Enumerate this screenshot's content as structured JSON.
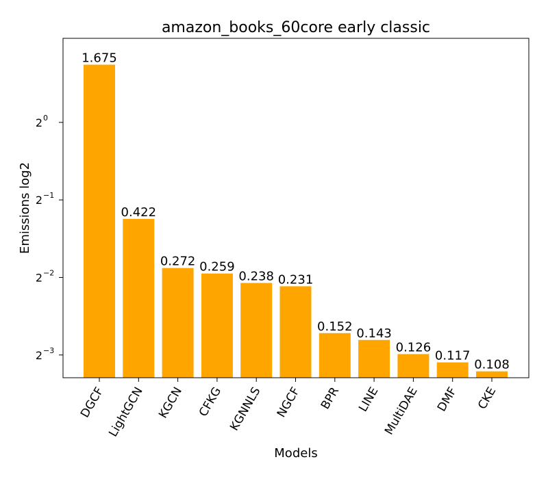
{
  "chart_data": {
    "type": "bar",
    "title": "amazon_books_60core early classic",
    "xlabel": "Models",
    "ylabel": "Emissions log2",
    "yscale": "log2",
    "ylim": [
      0.102,
      2.12
    ],
    "categories": [
      "DGCF",
      "LightGCN",
      "KGCN",
      "CFKG",
      "KGNNLS",
      "NGCF",
      "BPR",
      "LINE",
      "MultiDAE",
      "DMF",
      "CKE"
    ],
    "values": [
      1.675,
      0.422,
      0.272,
      0.259,
      0.238,
      0.231,
      0.152,
      0.143,
      0.126,
      0.117,
      0.108
    ],
    "value_labels": [
      "1.675",
      "0.422",
      "0.272",
      "0.259",
      "0.238",
      "0.231",
      "0.152",
      "0.143",
      "0.126",
      "0.117",
      "0.108"
    ],
    "yticks": [
      {
        "base": "2",
        "exp": "0",
        "value": 1
      },
      {
        "base": "2",
        "exp": "−1",
        "value": 0.5
      },
      {
        "base": "2",
        "exp": "−2",
        "value": 0.25
      },
      {
        "base": "2",
        "exp": "−3",
        "value": 0.125
      }
    ],
    "bar_color": "#ffa500",
    "grid": false,
    "legend": "none"
  }
}
